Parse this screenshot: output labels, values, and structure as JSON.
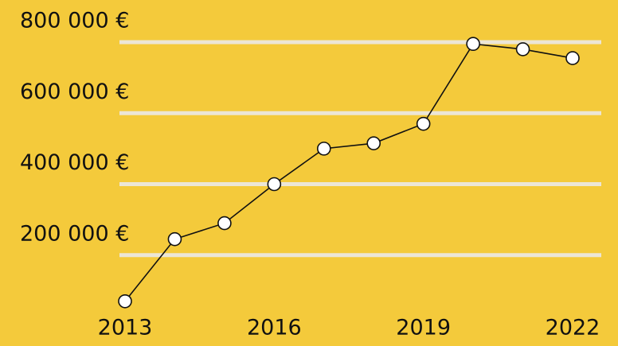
{
  "chart_data": {
    "type": "line",
    "x": [
      2013,
      2014,
      2015,
      2016,
      2017,
      2018,
      2019,
      2020,
      2021,
      2022
    ],
    "series": [
      {
        "color": "#111111",
        "values": [
          70000,
          245000,
          290000,
          400000,
          500000,
          515000,
          570000,
          795000,
          780000,
          755000
        ]
      }
    ],
    "xlim": [
      2013,
      2022
    ],
    "xticks": [
      2013,
      2016,
      2019,
      2022
    ],
    "ylim": [
      0,
      800000
    ],
    "yticks": [
      {
        "value": 200000,
        "label": "200 000 €"
      },
      {
        "value": 400000,
        "label": "400 000 €"
      },
      {
        "value": 600000,
        "label": "600 000 €"
      },
      {
        "value": 800000,
        "label": "800 000 €"
      }
    ],
    "grid": true
  }
}
